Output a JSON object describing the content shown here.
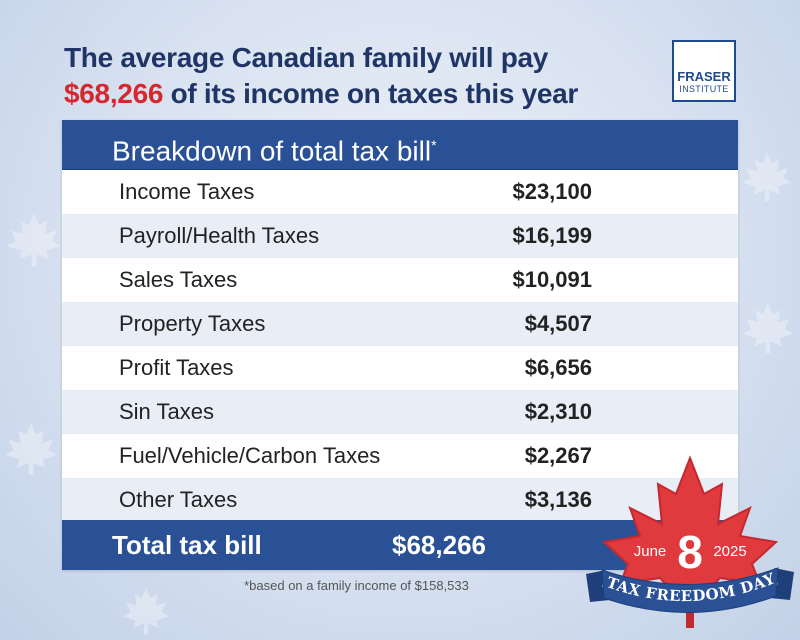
{
  "headline": {
    "line1": "The average Canadian family will pay",
    "amount": "$68,266",
    "line2_rest": " of its income on taxes this year"
  },
  "logo": {
    "line1": "FRASER",
    "line2": "INSTITUTE"
  },
  "table": {
    "title": "Breakdown of total tax bill",
    "title_mark": "*",
    "rows": [
      {
        "label": "Income Taxes",
        "value": "$23,100"
      },
      {
        "label": "Payroll/Health Taxes",
        "value": "$16,199"
      },
      {
        "label": "Sales Taxes",
        "value": "$10,091"
      },
      {
        "label": "Property Taxes",
        "value": "$4,507"
      },
      {
        "label": "Profit Taxes",
        "value": "$6,656"
      },
      {
        "label": "Sin Taxes",
        "value": "$2,310"
      },
      {
        "label": "Fuel/Vehicle/Carbon Taxes",
        "value": "$2,267"
      },
      {
        "label": "Other Taxes",
        "value": "$3,136"
      }
    ],
    "total_label": "Total tax bill",
    "total_value": "$68,266"
  },
  "footnote": "*based on a family income of $158,533",
  "badge": {
    "month": "June",
    "day": "8",
    "year": "2025",
    "ribbon": "TAX FREEDOM DAY"
  },
  "colors": {
    "navy": "#1f3566",
    "header_blue": "#2a5195",
    "accent_red": "#d7262d",
    "row_alt": "#e8edf6"
  }
}
